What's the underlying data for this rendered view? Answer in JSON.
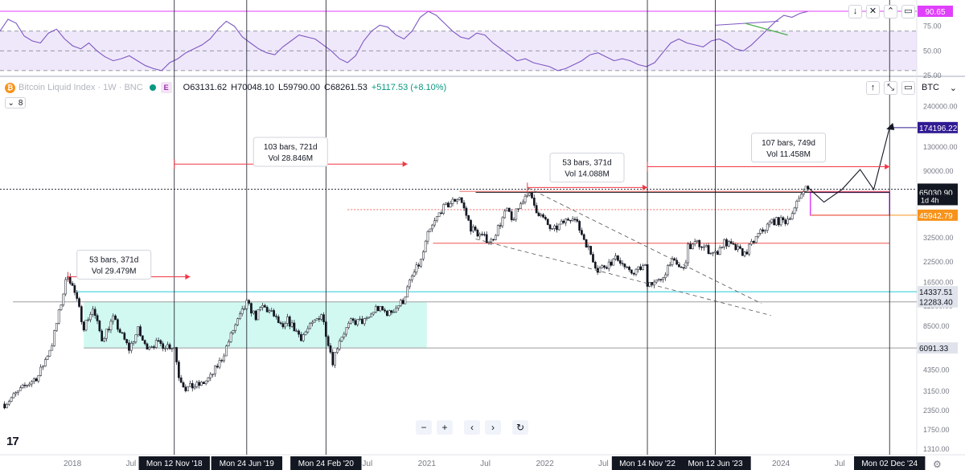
{
  "legend": {
    "symbol": "Bitcoin Liquid Index · 1W · BNC",
    "exchange_badge": "E",
    "open": "63131.62",
    "high": "70048.10",
    "low": "59790.00",
    "close": "68261.53",
    "change": "+5117.53 (+8.10%)",
    "collapse_count": "8"
  },
  "currency": "BTC",
  "rsi": {
    "current_label": "90.65",
    "ticks": [
      "75.00",
      "50.00",
      "25.00"
    ],
    "levels": {
      "upper": 70,
      "middle": 50,
      "lower": 30
    },
    "series_color": "#7e57c2",
    "band_color": "#e1d5f5",
    "trend_color": "#4caf50",
    "values": [
      70,
      82,
      78,
      65,
      60,
      58,
      68,
      72,
      62,
      55,
      52,
      58,
      50,
      44,
      40,
      42,
      45,
      40,
      35,
      32,
      30,
      38,
      42,
      48,
      52,
      56,
      62,
      72,
      80,
      75,
      64,
      58,
      52,
      48,
      46,
      54,
      60,
      66,
      64,
      62,
      56,
      50,
      42,
      38,
      45,
      60,
      70,
      76,
      74,
      66,
      62,
      70,
      84,
      90,
      86,
      78,
      70,
      64,
      62,
      68,
      66,
      58,
      52,
      46,
      40,
      42,
      38,
      36,
      34,
      30,
      32,
      36,
      40,
      46,
      48,
      44,
      40,
      42,
      40,
      36,
      34,
      38,
      48,
      58,
      62,
      58,
      56,
      54,
      60,
      62,
      58,
      52,
      50,
      56,
      64,
      72,
      80,
      86,
      84,
      88,
      90
    ]
  },
  "chart_data": {
    "type": "candlestick",
    "scale": "log",
    "y_ticks": [
      240000,
      180000,
      130000,
      90000,
      65000,
      45000,
      32500,
      22500,
      16500,
      11500,
      8500,
      6000,
      4350,
      3150,
      2350,
      1750,
      1310
    ],
    "y_tick_labels": [
      "240000.00",
      "180000.00",
      "130000.00",
      "90000.00",
      "65000.00",
      "45000.00",
      "32500.00",
      "22500.00",
      "16500.00",
      "11500.00",
      "8500.00",
      "6000.00",
      "4350.00",
      "3150.00",
      "2350.00",
      "1750.00",
      "1310.00"
    ],
    "x_labels": [
      "2018",
      "Jul",
      "Mon 12 Nov '18",
      "Mon 24 Jun '19",
      "Mon 24 Feb '20",
      "Jul",
      "2021",
      "Jul",
      "2022",
      "Jul",
      "Mon 14 Nov '22",
      "Mon 12 Jun '23",
      "2024",
      "Jul",
      "Mon 02 Dec '24"
    ],
    "x_dates": [
      "2018-01-01",
      "2018-07-01",
      "2018-11-12",
      "2019-06-24",
      "2020-02-24",
      "2020-07-01",
      "2021-01-01",
      "2021-07-01",
      "2022-01-01",
      "2022-07-01",
      "2022-11-14",
      "2023-06-12",
      "2024-01-01",
      "2024-07-01",
      "2024-12-02"
    ],
    "vertical_markers": [
      "2018-11-12",
      "2019-06-24",
      "2020-02-24",
      "2022-11-14",
      "2023-06-12",
      "2024-12-02"
    ],
    "price_path": [
      [
        "2017-06-05",
        2600
      ],
      [
        "2017-08-07",
        3400
      ],
      [
        "2017-09-18",
        4000
      ],
      [
        "2017-10-30",
        6500
      ],
      [
        "2017-12-11",
        16500
      ],
      [
        "2017-12-18",
        19000
      ],
      [
        "2018-01-08",
        14000
      ],
      [
        "2018-02-05",
        8500
      ],
      [
        "2018-03-05",
        11000
      ],
      [
        "2018-04-02",
        7000
      ],
      [
        "2018-05-07",
        9500
      ],
      [
        "2018-06-25",
        6000
      ],
      [
        "2018-07-23",
        8000
      ],
      [
        "2018-08-13",
        6300
      ],
      [
        "2018-09-17",
        6500
      ],
      [
        "2018-10-29",
        6300
      ],
      [
        "2018-11-12",
        6200
      ],
      [
        "2018-11-26",
        4000
      ],
      [
        "2018-12-17",
        3300
      ],
      [
        "2019-02-04",
        3500
      ],
      [
        "2019-03-04",
        3900
      ],
      [
        "2019-04-08",
        5200
      ],
      [
        "2019-05-13",
        8000
      ],
      [
        "2019-06-24",
        12000
      ],
      [
        "2019-07-22",
        9800
      ],
      [
        "2019-08-12",
        11500
      ],
      [
        "2019-09-16",
        10000
      ],
      [
        "2019-10-14",
        8000
      ],
      [
        "2019-10-28",
        9300
      ],
      [
        "2019-12-09",
        7200
      ],
      [
        "2020-01-13",
        8700
      ],
      [
        "2020-02-10",
        10300
      ],
      [
        "2020-03-16",
        5000
      ],
      [
        "2020-04-06",
        7000
      ],
      [
        "2020-05-11",
        9000
      ],
      [
        "2020-06-29",
        9200
      ],
      [
        "2020-07-27",
        11200
      ],
      [
        "2020-09-07",
        10300
      ],
      [
        "2020-10-19",
        12500
      ],
      [
        "2020-11-16",
        18000
      ],
      [
        "2020-12-14",
        23000
      ],
      [
        "2021-01-04",
        34000
      ],
      [
        "2021-02-15",
        50000
      ],
      [
        "2021-04-12",
        61000
      ],
      [
        "2021-05-17",
        38000
      ],
      [
        "2021-06-21",
        33000
      ],
      [
        "2021-07-19",
        31000
      ],
      [
        "2021-09-06",
        50000
      ],
      [
        "2021-09-20",
        42000
      ],
      [
        "2021-11-08",
        66000
      ],
      [
        "2021-12-06",
        50000
      ],
      [
        "2022-01-24",
        36000
      ],
      [
        "2022-03-28",
        46000
      ],
      [
        "2022-05-09",
        30000
      ],
      [
        "2022-06-13",
        20000
      ],
      [
        "2022-08-15",
        24000
      ],
      [
        "2022-09-19",
        19000
      ],
      [
        "2022-11-07",
        21000
      ],
      [
        "2022-11-14",
        16500
      ],
      [
        "2022-12-26",
        16600
      ],
      [
        "2023-01-23",
        23000
      ],
      [
        "2023-03-06",
        20000
      ],
      [
        "2023-03-20",
        28000
      ],
      [
        "2023-04-17",
        30000
      ],
      [
        "2023-06-12",
        25500
      ],
      [
        "2023-07-10",
        30500
      ],
      [
        "2023-09-11",
        25500
      ],
      [
        "2023-10-23",
        34000
      ],
      [
        "2023-12-04",
        42000
      ],
      [
        "2024-01-15",
        42000
      ],
      [
        "2024-02-12",
        50000
      ],
      [
        "2024-03-11",
        70000
      ],
      [
        "2024-03-25",
        68261.53
      ]
    ],
    "horizontal_lines": [
      {
        "price": 68261.53,
        "label": "68261.53",
        "style": "dotted",
        "color": "#131722"
      },
      {
        "price": 65030.9,
        "label": "65030.90",
        "style": "solid",
        "color": "#131722"
      },
      {
        "price": 45942.79,
        "label": "45942.79",
        "style": "solid",
        "color": "#f7931a"
      },
      {
        "price": 174196.22,
        "label": "174196.22",
        "style": "solid",
        "color": "#311b92"
      },
      {
        "price": 14337.51,
        "label": "14337.51",
        "style": "solid",
        "color": "#26c6da"
      },
      {
        "price": 12283.4,
        "label": "12283.40",
        "style": "solid",
        "color": "#9e9e9e"
      },
      {
        "price": 6091.33,
        "label": "6091.33",
        "style": "solid",
        "color": "#9e9e9e"
      },
      {
        "price": 30000,
        "label": "",
        "style": "solid",
        "color": "#ef5350"
      }
    ],
    "countdown_label": "1d 4h",
    "range_annotations": [
      {
        "text1": "53 bars, 371d",
        "text2": "Vol 29.479M"
      },
      {
        "text1": "103 bars, 721d",
        "text2": "Vol 28.846M"
      },
      {
        "text1": "53 bars, 371d",
        "text2": "Vol 14.088M"
      },
      {
        "text1": "107 bars, 749d",
        "text2": "Vol 11.458M"
      }
    ],
    "range_zone_cyan": {
      "start": "2018-02-05",
      "end": "2021-01-01",
      "low": 6091.33,
      "high": 12283.4
    },
    "forecast_path": [
      [
        "2024-03-25",
        70000
      ],
      [
        "2024-05-13",
        56000
      ],
      [
        "2024-07-08",
        68000
      ],
      [
        "2024-09-02",
        92000
      ],
      [
        "2024-10-14",
        68000
      ],
      [
        "2024-12-02",
        174196.22
      ]
    ],
    "target_box": {
      "start": "2024-04-01",
      "end": "2024-12-02",
      "low": 45942.79,
      "high": 65030.9
    }
  },
  "colors": {
    "up": "#131722",
    "down": "#131722",
    "measure": "#f23645",
    "grid": "#f0f3fa"
  }
}
